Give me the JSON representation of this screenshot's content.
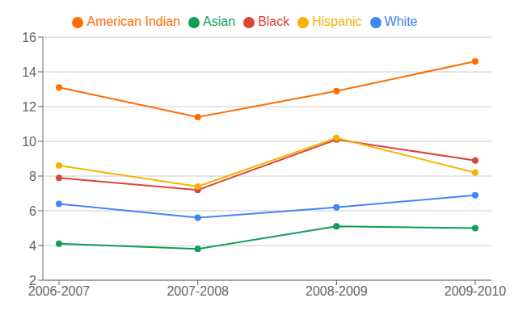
{
  "chart_data": {
    "type": "line",
    "categories": [
      "2006-2007",
      "2007-2008",
      "2008-2009",
      "2009-2010"
    ],
    "series": [
      {
        "name": "White",
        "color": "#4285F4",
        "values": [
          6.4,
          5.6,
          6.2,
          6.9
        ]
      },
      {
        "name": "Black",
        "color": "#DB4437",
        "values": [
          7.9,
          7.2,
          10.1,
          8.9
        ]
      },
      {
        "name": "Hispanic",
        "color": "#F4B400",
        "values": [
          8.6,
          7.4,
          10.2,
          8.2
        ]
      },
      {
        "name": "Asian",
        "color": "#0F9D58",
        "values": [
          4.1,
          3.8,
          5.1,
          5.0
        ]
      },
      {
        "name": "American Indian",
        "color": "#FF6D00",
        "values": [
          13.1,
          11.4,
          12.9,
          14.6
        ]
      }
    ],
    "ylim": [
      2,
      16
    ],
    "yticks": [
      2,
      4,
      6,
      8,
      10,
      12,
      14,
      16
    ],
    "grid": true,
    "legend": "top",
    "marker": "circle"
  }
}
